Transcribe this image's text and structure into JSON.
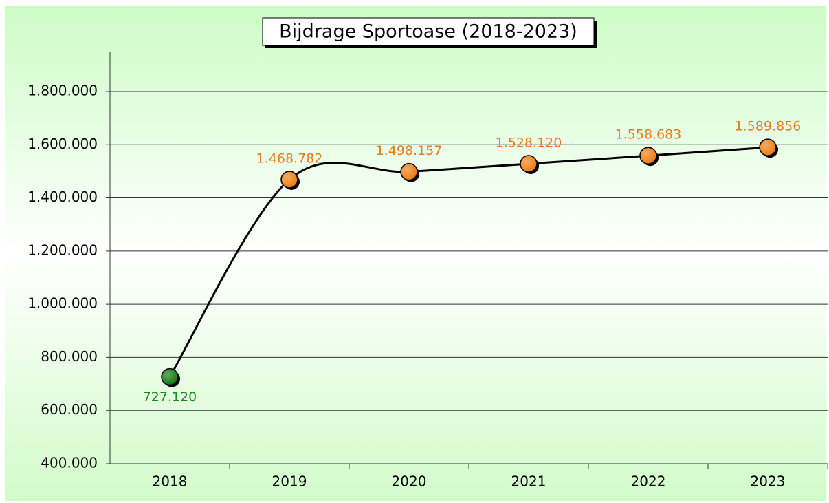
{
  "chart_data": {
    "type": "line",
    "title": "Bijdrage Sportoase (2018-2023)",
    "categories": [
      "2018",
      "2019",
      "2020",
      "2021",
      "2022",
      "2023"
    ],
    "values": [
      727120,
      1468782,
      1498157,
      1528120,
      1558683,
      1589856
    ],
    "value_labels": [
      "727.120",
      "1.468.782",
      "1.498.157",
      "1.528.120",
      "1.558.683",
      "1.589.856"
    ],
    "line_color": "#000000",
    "smooth": true,
    "marker_colors": [
      "#127a12",
      "#f07d14",
      "#f07d14",
      "#f07d14",
      "#f07d14",
      "#f07d14"
    ],
    "label_colors": [
      "#168c16",
      "#e77a18",
      "#e77a18",
      "#e77a18",
      "#e77a18",
      "#e77a18"
    ],
    "label_positions": [
      "below",
      "above",
      "above",
      "above",
      "above",
      "above"
    ],
    "ylim": [
      400000,
      1950000
    ],
    "yticks": [
      {
        "value": 400000,
        "label": "400.000"
      },
      {
        "value": 600000,
        "label": "600.000"
      },
      {
        "value": 800000,
        "label": "800.000"
      },
      {
        "value": 1000000,
        "label": "1.000.000"
      },
      {
        "value": 1200000,
        "label": "1.200.000"
      },
      {
        "value": 1400000,
        "label": "1.400.000"
      },
      {
        "value": 1600000,
        "label": "1.600.000"
      },
      {
        "value": 1800000,
        "label": "1.800.000"
      }
    ],
    "grid": true
  }
}
